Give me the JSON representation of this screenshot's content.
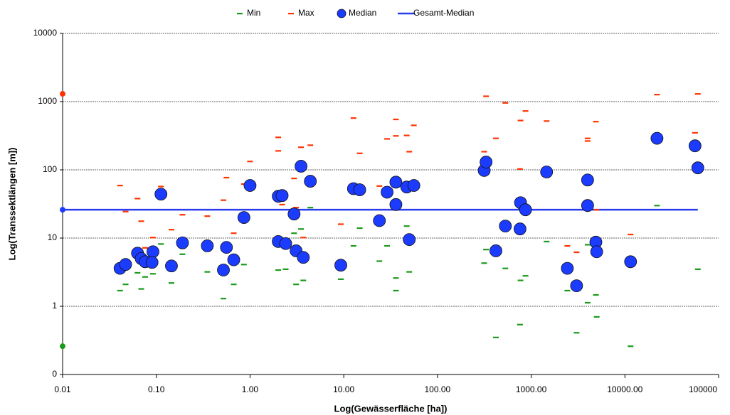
{
  "chart_data": {
    "type": "scatter",
    "xlabel": "Log(Gewässerfläche [ha])",
    "ylabel": "Log(Transsektlängen [m])",
    "xscale": "log",
    "yscale": "log",
    "xlim": [
      0.01,
      100000
    ],
    "ylim": [
      0.1,
      10000
    ],
    "xticks": [
      {
        "value": 0.01,
        "label": "0.01"
      },
      {
        "value": 0.1,
        "label": "0.10"
      },
      {
        "value": 1,
        "label": "1.00"
      },
      {
        "value": 10,
        "label": "10.00"
      },
      {
        "value": 100,
        "label": "100.00"
      },
      {
        "value": 1000,
        "label": "1000.00"
      },
      {
        "value": 10000,
        "label": "10000.00"
      },
      100000
    ],
    "yticks": [
      {
        "value": 0.1,
        "label": "0"
      },
      1,
      10,
      100,
      1000,
      10000
    ],
    "grid": true,
    "legend": "top",
    "series": [
      {
        "name": "Min",
        "marker": "dash",
        "color": "#1a9a1a",
        "x": [
          0.041,
          0.047,
          0.063,
          0.069,
          0.076,
          0.092,
          0.112,
          0.145,
          0.19,
          0.35,
          0.52,
          0.67,
          0.86,
          2.0,
          2.4,
          2.95,
          3.1,
          3.5,
          3.7,
          4.4,
          9.3,
          12.7,
          14.8,
          24,
          29,
          36,
          36,
          47,
          50,
          315,
          330,
          420,
          530,
          760,
          770,
          870,
          1460,
          2430,
          3050,
          4000,
          4000,
          4900,
          5000,
          11500,
          22000,
          60000
        ],
        "values": [
          1.7,
          2.1,
          3.1,
          1.8,
          2.7,
          3.0,
          8.2,
          2.2,
          5.8,
          3.2,
          1.3,
          2.1,
          4.1,
          3.4,
          3.5,
          11.8,
          2.1,
          13.6,
          2.4,
          28,
          2.5,
          7.7,
          14,
          4.6,
          7.7,
          2.6,
          1.7,
          15,
          3.2,
          4.3,
          6.8,
          0.35,
          3.6,
          0.54,
          2.4,
          2.8,
          8.9,
          1.7,
          0.41,
          1.13,
          8.0,
          1.47,
          0.7,
          0.26,
          30,
          3.5
        ]
      },
      {
        "name": "Max",
        "marker": "dash",
        "color": "#ff3300",
        "x": [
          0.041,
          0.047,
          0.063,
          0.069,
          0.076,
          0.092,
          0.112,
          0.145,
          0.19,
          0.35,
          0.56,
          0.52,
          0.67,
          0.86,
          1.0,
          2.0,
          2.0,
          2.2,
          2.95,
          3.1,
          3.5,
          3.7,
          4.4,
          9.3,
          12.7,
          14.8,
          24,
          29,
          36,
          36,
          47,
          50,
          56,
          315,
          330,
          420,
          530,
          760,
          770,
          870,
          1460,
          2430,
          3050,
          4000,
          4000,
          4900,
          5000,
          11500,
          22000,
          56000,
          60000
        ],
        "values": [
          59,
          24.5,
          38,
          17.7,
          7.2,
          10.2,
          57,
          13.3,
          22,
          21,
          77,
          36,
          11.8,
          62,
          133,
          300,
          190,
          31,
          75,
          28,
          215,
          10.2,
          230,
          16,
          575,
          175,
          58,
          285,
          550,
          315,
          320,
          185,
          450,
          185,
          1200,
          290,
          960,
          103,
          530,
          730,
          520,
          7.7,
          6.2,
          290,
          265,
          510,
          26,
          11.3,
          1270,
          350,
          1300
        ]
      },
      {
        "name": "Median",
        "marker": "circle",
        "color": "#1b3cff",
        "x": [
          0.041,
          0.047,
          0.063,
          0.069,
          0.076,
          0.092,
          0.09,
          0.112,
          0.145,
          0.19,
          0.35,
          0.56,
          0.52,
          0.67,
          0.86,
          1.0,
          2.0,
          2.0,
          2.2,
          2.4,
          2.95,
          3.1,
          3.5,
          3.7,
          4.4,
          9.3,
          12.7,
          14.8,
          24,
          29,
          36,
          36,
          47,
          56,
          50,
          315,
          330,
          420,
          530,
          760,
          770,
          870,
          1460,
          2430,
          3050,
          4000,
          4000,
          4900,
          5000,
          11500,
          22000,
          56000,
          60000
        ],
        "values": [
          3.6,
          4.1,
          6.0,
          5.0,
          4.5,
          6.3,
          4.4,
          44,
          3.9,
          8.5,
          7.7,
          7.3,
          3.4,
          4.8,
          20,
          59,
          8.9,
          41,
          42,
          8.3,
          22.5,
          6.5,
          113,
          5.2,
          68,
          4.0,
          53,
          51,
          18,
          47,
          31,
          66,
          56,
          59,
          9.5,
          98,
          130,
          6.5,
          15,
          13.6,
          33,
          26,
          93,
          3.6,
          2.0,
          30,
          71,
          8.7,
          6.3,
          4.5,
          290,
          225,
          107
        ]
      },
      {
        "name": "Gesamt-Median",
        "marker": "line",
        "color": "#2a3cf0",
        "x": [
          0.01,
          60000
        ],
        "values": [
          26,
          26
        ]
      }
    ],
    "axis_markers": [
      {
        "x": 0.01,
        "y": 1300,
        "color": "#ff3300"
      },
      {
        "x": 0.01,
        "y": 26,
        "color": "#1b3cff"
      },
      {
        "x": 0.01,
        "y": 0.26,
        "color": "#1a9a1a"
      }
    ]
  }
}
